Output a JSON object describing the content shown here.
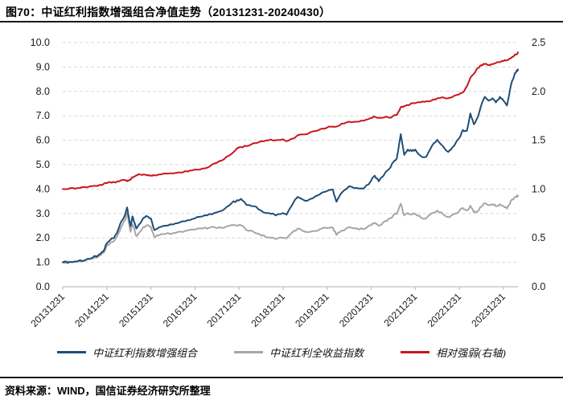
{
  "figure": {
    "title": "图70：中证红利指数增强组合净值走势（20131231-20240430）",
    "source": "资料来源：WIND，国信证券经济研究所整理"
  },
  "colors": {
    "portfolio_line": "#1F4E79",
    "index_line": "#A6A6A6",
    "relative_line": "#C8161D",
    "gridline": "#D9D9D9",
    "axis_line": "#BFBFBF",
    "tick_text": "#1a1a1a"
  },
  "chart_data": {
    "type": "line",
    "title": "中证红利指数增强组合净值走势（20131231-20240430）",
    "grid": "dashed horizontal gridlines",
    "legend_position": "bottom",
    "x_axis": {
      "note": "t = years since 2013-12-31, data through 2024-04-30 (t=10.33)",
      "tick_t": [
        0,
        1,
        2,
        3,
        4,
        5,
        6,
        7,
        8,
        9,
        10
      ],
      "tick_labels": [
        "20131231",
        "20141231",
        "20151231",
        "20161231",
        "20171231",
        "20181231",
        "20191231",
        "20201231",
        "20211231",
        "20221231",
        "20231231"
      ]
    },
    "left_axis": {
      "range": [
        0.0,
        10.0
      ],
      "tick_labels": [
        "0.0",
        "1.0",
        "2.0",
        "3.0",
        "4.0",
        "5.0",
        "6.0",
        "7.0",
        "8.0",
        "9.0",
        "10.0"
      ]
    },
    "right_axis": {
      "range": [
        0.0,
        2.5
      ],
      "tick_labels": [
        "0.0",
        "0.5",
        "1.0",
        "1.5",
        "2.0",
        "2.5"
      ]
    },
    "series": [
      {
        "name": "中证红利指数增强组合",
        "axis": "left",
        "color": "#1F4E79",
        "points": [
          [
            0.0,
            1.0
          ],
          [
            0.17,
            1.02
          ],
          [
            0.33,
            1.04
          ],
          [
            0.5,
            1.08
          ],
          [
            0.67,
            1.18
          ],
          [
            0.83,
            1.33
          ],
          [
            0.92,
            1.45
          ],
          [
            1.0,
            1.78
          ],
          [
            1.08,
            1.92
          ],
          [
            1.17,
            2.02
          ],
          [
            1.25,
            2.3
          ],
          [
            1.33,
            2.68
          ],
          [
            1.42,
            2.98
          ],
          [
            1.46,
            3.25
          ],
          [
            1.5,
            2.85
          ],
          [
            1.54,
            2.48
          ],
          [
            1.58,
            2.88
          ],
          [
            1.63,
            2.62
          ],
          [
            1.67,
            2.38
          ],
          [
            1.75,
            2.58
          ],
          [
            1.83,
            2.82
          ],
          [
            1.92,
            2.88
          ],
          [
            2.0,
            2.8
          ],
          [
            2.08,
            2.32
          ],
          [
            2.17,
            2.42
          ],
          [
            2.33,
            2.5
          ],
          [
            2.5,
            2.55
          ],
          [
            2.67,
            2.65
          ],
          [
            2.83,
            2.72
          ],
          [
            3.0,
            2.8
          ],
          [
            3.17,
            2.88
          ],
          [
            3.33,
            2.98
          ],
          [
            3.5,
            3.05
          ],
          [
            3.67,
            3.18
          ],
          [
            3.83,
            3.42
          ],
          [
            3.96,
            3.55
          ],
          [
            4.04,
            3.6
          ],
          [
            4.17,
            3.35
          ],
          [
            4.33,
            3.3
          ],
          [
            4.5,
            3.12
          ],
          [
            4.67,
            3.02
          ],
          [
            4.83,
            2.92
          ],
          [
            5.0,
            3.02
          ],
          [
            5.08,
            2.95
          ],
          [
            5.25,
            3.5
          ],
          [
            5.33,
            3.68
          ],
          [
            5.5,
            3.52
          ],
          [
            5.67,
            3.62
          ],
          [
            5.83,
            3.78
          ],
          [
            6.0,
            3.92
          ],
          [
            6.13,
            3.98
          ],
          [
            6.21,
            3.48
          ],
          [
            6.33,
            3.85
          ],
          [
            6.5,
            4.12
          ],
          [
            6.67,
            4.05
          ],
          [
            6.83,
            4.02
          ],
          [
            7.0,
            4.35
          ],
          [
            7.08,
            4.55
          ],
          [
            7.17,
            4.32
          ],
          [
            7.33,
            4.7
          ],
          [
            7.42,
            4.85
          ],
          [
            7.5,
            5.1
          ],
          [
            7.58,
            5.25
          ],
          [
            7.67,
            6.25
          ],
          [
            7.75,
            5.4
          ],
          [
            7.83,
            5.62
          ],
          [
            7.92,
            5.55
          ],
          [
            8.0,
            5.62
          ],
          [
            8.13,
            5.35
          ],
          [
            8.25,
            5.32
          ],
          [
            8.38,
            5.78
          ],
          [
            8.5,
            6.02
          ],
          [
            8.63,
            5.75
          ],
          [
            8.75,
            5.52
          ],
          [
            8.83,
            5.68
          ],
          [
            9.0,
            6.1
          ],
          [
            9.08,
            6.42
          ],
          [
            9.17,
            6.38
          ],
          [
            9.25,
            7.1
          ],
          [
            9.33,
            6.65
          ],
          [
            9.42,
            6.95
          ],
          [
            9.5,
            7.45
          ],
          [
            9.58,
            7.78
          ],
          [
            9.67,
            7.62
          ],
          [
            9.75,
            7.72
          ],
          [
            9.83,
            7.55
          ],
          [
            9.92,
            7.78
          ],
          [
            10.0,
            7.62
          ],
          [
            10.08,
            7.42
          ],
          [
            10.17,
            8.25
          ],
          [
            10.25,
            8.68
          ],
          [
            10.29,
            8.8
          ],
          [
            10.33,
            8.9
          ]
        ]
      },
      {
        "name": "中证红利全收益指数",
        "axis": "left",
        "color": "#A6A6A6",
        "points": [
          [
            0.0,
            1.0
          ],
          [
            0.17,
            1.01
          ],
          [
            0.33,
            1.03
          ],
          [
            0.5,
            1.06
          ],
          [
            0.67,
            1.15
          ],
          [
            0.83,
            1.28
          ],
          [
            0.92,
            1.38
          ],
          [
            1.0,
            1.68
          ],
          [
            1.08,
            1.8
          ],
          [
            1.17,
            1.88
          ],
          [
            1.25,
            2.12
          ],
          [
            1.33,
            2.46
          ],
          [
            1.42,
            2.74
          ],
          [
            1.46,
            3.02
          ],
          [
            1.5,
            2.62
          ],
          [
            1.54,
            2.25
          ],
          [
            1.58,
            2.58
          ],
          [
            1.63,
            2.32
          ],
          [
            1.67,
            2.08
          ],
          [
            1.75,
            2.25
          ],
          [
            1.83,
            2.45
          ],
          [
            1.92,
            2.52
          ],
          [
            2.0,
            2.45
          ],
          [
            2.08,
            2.03
          ],
          [
            2.17,
            2.1
          ],
          [
            2.33,
            2.16
          ],
          [
            2.5,
            2.19
          ],
          [
            2.67,
            2.26
          ],
          [
            2.83,
            2.3
          ],
          [
            3.0,
            2.34
          ],
          [
            3.17,
            2.38
          ],
          [
            3.33,
            2.42
          ],
          [
            3.5,
            2.4
          ],
          [
            3.67,
            2.42
          ],
          [
            3.83,
            2.52
          ],
          [
            3.96,
            2.5
          ],
          [
            4.04,
            2.52
          ],
          [
            4.17,
            2.32
          ],
          [
            4.33,
            2.25
          ],
          [
            4.5,
            2.1
          ],
          [
            4.67,
            2.02
          ],
          [
            4.83,
            1.95
          ],
          [
            5.0,
            2.0
          ],
          [
            5.08,
            1.98
          ],
          [
            5.25,
            2.3
          ],
          [
            5.33,
            2.38
          ],
          [
            5.5,
            2.25
          ],
          [
            5.67,
            2.28
          ],
          [
            5.83,
            2.35
          ],
          [
            6.0,
            2.4
          ],
          [
            6.13,
            2.42
          ],
          [
            6.21,
            2.12
          ],
          [
            6.33,
            2.3
          ],
          [
            6.5,
            2.44
          ],
          [
            6.67,
            2.39
          ],
          [
            6.83,
            2.36
          ],
          [
            7.0,
            2.52
          ],
          [
            7.08,
            2.62
          ],
          [
            7.17,
            2.5
          ],
          [
            7.33,
            2.7
          ],
          [
            7.42,
            2.8
          ],
          [
            7.5,
            2.92
          ],
          [
            7.58,
            2.98
          ],
          [
            7.67,
            3.4
          ],
          [
            7.75,
            2.92
          ],
          [
            7.83,
            3.02
          ],
          [
            7.92,
            2.96
          ],
          [
            8.0,
            2.99
          ],
          [
            8.13,
            2.83
          ],
          [
            8.25,
            2.8
          ],
          [
            8.38,
            3.02
          ],
          [
            8.5,
            3.12
          ],
          [
            8.63,
            2.97
          ],
          [
            8.75,
            2.86
          ],
          [
            8.83,
            2.93
          ],
          [
            9.0,
            3.1
          ],
          [
            9.08,
            3.22
          ],
          [
            9.17,
            3.12
          ],
          [
            9.25,
            3.32
          ],
          [
            9.33,
            3.05
          ],
          [
            9.42,
            3.1
          ],
          [
            9.5,
            3.28
          ],
          [
            9.58,
            3.42
          ],
          [
            9.67,
            3.35
          ],
          [
            9.75,
            3.38
          ],
          [
            9.83,
            3.3
          ],
          [
            9.92,
            3.38
          ],
          [
            10.0,
            3.3
          ],
          [
            10.08,
            3.2
          ],
          [
            10.17,
            3.52
          ],
          [
            10.25,
            3.66
          ],
          [
            10.29,
            3.7
          ],
          [
            10.33,
            3.71
          ]
        ]
      },
      {
        "name": "相对强弱(右轴)",
        "axis": "right",
        "color": "#C8161D",
        "points": [
          [
            0.0,
            1.0
          ],
          [
            0.17,
            1.01
          ],
          [
            0.33,
            1.01
          ],
          [
            0.5,
            1.02
          ],
          [
            0.67,
            1.03
          ],
          [
            0.83,
            1.04
          ],
          [
            0.92,
            1.05
          ],
          [
            1.0,
            1.06
          ],
          [
            1.08,
            1.07
          ],
          [
            1.17,
            1.07
          ],
          [
            1.25,
            1.08
          ],
          [
            1.33,
            1.09
          ],
          [
            1.42,
            1.09
          ],
          [
            1.46,
            1.08
          ],
          [
            1.5,
            1.09
          ],
          [
            1.54,
            1.1
          ],
          [
            1.58,
            1.12
          ],
          [
            1.63,
            1.13
          ],
          [
            1.67,
            1.14
          ],
          [
            1.75,
            1.15
          ],
          [
            1.83,
            1.15
          ],
          [
            1.92,
            1.14
          ],
          [
            2.0,
            1.14
          ],
          [
            2.08,
            1.14
          ],
          [
            2.17,
            1.15
          ],
          [
            2.33,
            1.16
          ],
          [
            2.5,
            1.16
          ],
          [
            2.67,
            1.17
          ],
          [
            2.83,
            1.18
          ],
          [
            3.0,
            1.2
          ],
          [
            3.17,
            1.21
          ],
          [
            3.33,
            1.23
          ],
          [
            3.5,
            1.27
          ],
          [
            3.67,
            1.31
          ],
          [
            3.83,
            1.36
          ],
          [
            3.96,
            1.42
          ],
          [
            4.04,
            1.43
          ],
          [
            4.17,
            1.44
          ],
          [
            4.33,
            1.47
          ],
          [
            4.5,
            1.49
          ],
          [
            4.67,
            1.5
          ],
          [
            4.83,
            1.5
          ],
          [
            5.0,
            1.51
          ],
          [
            5.08,
            1.49
          ],
          [
            5.25,
            1.52
          ],
          [
            5.33,
            1.55
          ],
          [
            5.5,
            1.56
          ],
          [
            5.67,
            1.59
          ],
          [
            5.83,
            1.61
          ],
          [
            6.0,
            1.63
          ],
          [
            6.13,
            1.64
          ],
          [
            6.21,
            1.64
          ],
          [
            6.33,
            1.67
          ],
          [
            6.5,
            1.69
          ],
          [
            6.67,
            1.69
          ],
          [
            6.83,
            1.7
          ],
          [
            7.0,
            1.73
          ],
          [
            7.08,
            1.74
          ],
          [
            7.17,
            1.73
          ],
          [
            7.33,
            1.74
          ],
          [
            7.42,
            1.73
          ],
          [
            7.5,
            1.75
          ],
          [
            7.58,
            1.76
          ],
          [
            7.67,
            1.84
          ],
          [
            7.75,
            1.85
          ],
          [
            7.83,
            1.86
          ],
          [
            7.92,
            1.88
          ],
          [
            8.0,
            1.88
          ],
          [
            8.13,
            1.89
          ],
          [
            8.25,
            1.9
          ],
          [
            8.38,
            1.91
          ],
          [
            8.5,
            1.93
          ],
          [
            8.63,
            1.94
          ],
          [
            8.75,
            1.93
          ],
          [
            8.83,
            1.94
          ],
          [
            9.0,
            1.97
          ],
          [
            9.08,
            1.99
          ],
          [
            9.17,
            2.05
          ],
          [
            9.25,
            2.14
          ],
          [
            9.33,
            2.18
          ],
          [
            9.42,
            2.24
          ],
          [
            9.5,
            2.27
          ],
          [
            9.58,
            2.28
          ],
          [
            9.67,
            2.27
          ],
          [
            9.75,
            2.28
          ],
          [
            9.83,
            2.29
          ],
          [
            9.92,
            2.3
          ],
          [
            10.0,
            2.31
          ],
          [
            10.08,
            2.32
          ],
          [
            10.17,
            2.34
          ],
          [
            10.25,
            2.37
          ],
          [
            10.29,
            2.38
          ],
          [
            10.33,
            2.4
          ]
        ]
      }
    ]
  }
}
